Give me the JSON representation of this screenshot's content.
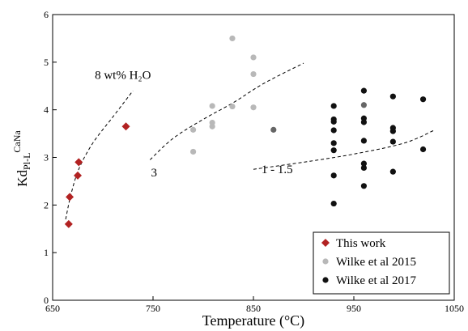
{
  "chart_data": {
    "type": "scatter",
    "xlabel": "Temperature (°C)",
    "ylabel": {
      "base": "Kd",
      "sub": "Pl-L",
      "sup": "CaNa"
    },
    "xlim": [
      650,
      1050
    ],
    "ylim": [
      0,
      6
    ],
    "xticks": [
      650,
      750,
      850,
      950,
      1050
    ],
    "yticks": [
      0,
      1,
      2,
      3,
      4,
      5,
      6
    ],
    "grid": false,
    "legend_position": "bottom-right",
    "series": [
      {
        "name": "This work",
        "marker": "diamond",
        "color": "#b22222",
        "points": [
          [
            666,
            1.6
          ],
          [
            667,
            2.17
          ],
          [
            675,
            2.62
          ],
          [
            676,
            2.9
          ],
          [
            723,
            3.65
          ]
        ]
      },
      {
        "name": "Wilke et al 2015",
        "marker": "circle",
        "color": "#b8b8b8",
        "points": [
          [
            790,
            3.12
          ],
          [
            790,
            3.58
          ],
          [
            809,
            3.65
          ],
          [
            809,
            3.73
          ],
          [
            809,
            4.08
          ],
          [
            829,
            4.07
          ],
          [
            829,
            5.5
          ],
          [
            850,
            4.05
          ],
          [
            850,
            4.75
          ],
          [
            850,
            5.1
          ]
        ]
      },
      {
        "name": "Wilke et al 2017",
        "marker": "circle",
        "color": "#111111",
        "points": [
          [
            930,
            2.03
          ],
          [
            930,
            2.62
          ],
          [
            930,
            3.15
          ],
          [
            930,
            3.3
          ],
          [
            930,
            3.57
          ],
          [
            930,
            3.75
          ],
          [
            930,
            3.8
          ],
          [
            930,
            4.08
          ],
          [
            960,
            2.4
          ],
          [
            960,
            2.78
          ],
          [
            960,
            2.87
          ],
          [
            960,
            3.35
          ],
          [
            960,
            3.74
          ],
          [
            960,
            3.82
          ],
          [
            960,
            4.4
          ],
          [
            989,
            2.7
          ],
          [
            989,
            3.33
          ],
          [
            989,
            3.55
          ],
          [
            989,
            3.62
          ],
          [
            989,
            4.28
          ],
          [
            1019,
            3.17
          ],
          [
            1019,
            4.22
          ]
        ]
      },
      {
        "name": "",
        "marker": "circle",
        "color": "#666666",
        "points": [
          [
            870,
            3.58
          ],
          [
            960,
            4.1
          ]
        ]
      }
    ],
    "curves": [
      {
        "label": "8 wt% H₂O",
        "points": [
          [
            663,
            1.7
          ],
          [
            668,
            2.2
          ],
          [
            676,
            2.75
          ],
          [
            690,
            3.3
          ],
          [
            710,
            3.85
          ],
          [
            730,
            4.4
          ]
        ]
      },
      {
        "label": "3",
        "points": [
          [
            747,
            2.95
          ],
          [
            770,
            3.4
          ],
          [
            800,
            3.8
          ],
          [
            830,
            4.15
          ],
          [
            860,
            4.55
          ],
          [
            900,
            4.98
          ]
        ]
      },
      {
        "label": "1 - 1.5",
        "points": [
          [
            850,
            2.75
          ],
          [
            900,
            2.9
          ],
          [
            950,
            3.07
          ],
          [
            1000,
            3.3
          ],
          [
            1030,
            3.57
          ]
        ]
      }
    ],
    "annotations": [
      {
        "text": "8 wt% H₂O",
        "x": 692,
        "y": 4.65
      },
      {
        "text": "3",
        "x": 748,
        "y": 2.6
      },
      {
        "text": "1 - 1.5",
        "x": 858,
        "y": 2.67
      }
    ]
  }
}
